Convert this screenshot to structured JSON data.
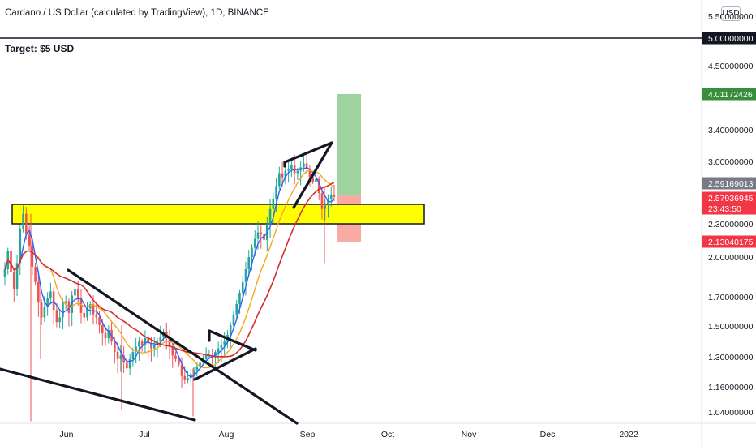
{
  "header": {
    "title": "Cardano / US Dollar (calculated by TradingView), 1D, BINANCE",
    "currency_button": "USD",
    "annotation": "Target: $5 USD"
  },
  "colors": {
    "up": "#26a69a",
    "down": "#ef5350",
    "ma_blue": "#2962ff",
    "ma_orange": "#f5a623",
    "ma_red": "#d32f2f",
    "zone": "#ffff00",
    "target_green": "#4caf50",
    "stop_red": "#f44336",
    "badge_dark": "#131722",
    "badge_green": "#388e3c",
    "badge_grey": "#787b86",
    "badge_red": "#f23645"
  },
  "chart_data": {
    "type": "candlestick",
    "title": "Cardano / US Dollar (calculated by TradingView), 1D, BINANCE",
    "x_ticks": [
      "Jun",
      "Jul",
      "Aug",
      "Sep",
      "Oct",
      "Nov",
      "Dec",
      "2022"
    ],
    "y_ticks": [
      "5.50000000",
      "5.00000000",
      "4.50000000",
      "3.40000000",
      "3.00000000",
      "2.30000000",
      "2.00000000",
      "1.70000000",
      "1.50000000",
      "1.30000000",
      "1.16000000",
      "1.04000000"
    ],
    "y_scale": "log",
    "price_badges": [
      {
        "label": "5.00000000",
        "kind": "dark",
        "value": 5.0
      },
      {
        "label": "4.01172426",
        "kind": "green",
        "value": 4.01172426
      },
      {
        "label": "2.59169013",
        "kind": "grey",
        "value": 2.59169013
      },
      {
        "label": "2.57936945",
        "kind": "red",
        "value": 2.57936945,
        "sub": "23:43:50"
      },
      {
        "label": "2.13040175",
        "kind": "red",
        "value": 2.13040175
      }
    ],
    "horizontal_line": 5.0,
    "support_zone": [
      2.34,
      2.55
    ],
    "position": {
      "entry": 2.59169013,
      "target": 4.01172426,
      "stop": 2.13040175
    },
    "closes": [
      1.9,
      2.05,
      1.88,
      1.75,
      1.95,
      2.25,
      2.4,
      2.2,
      2.1,
      1.92,
      1.8,
      1.65,
      1.55,
      1.62,
      1.68,
      1.73,
      1.6,
      1.52,
      1.55,
      1.65,
      1.66,
      1.58,
      1.7,
      1.75,
      1.68,
      1.58,
      1.55,
      1.61,
      1.64,
      1.57,
      1.55,
      1.5,
      1.45,
      1.42,
      1.47,
      1.4,
      1.34,
      1.3,
      1.32,
      1.28,
      1.25,
      1.3,
      1.34,
      1.37,
      1.4,
      1.38,
      1.42,
      1.39,
      1.36,
      1.38,
      1.4,
      1.43,
      1.46,
      1.42,
      1.37,
      1.32,
      1.3,
      1.27,
      1.21,
      1.19,
      1.2,
      1.22,
      1.24,
      1.26,
      1.28,
      1.3,
      1.32,
      1.32,
      1.31,
      1.34,
      1.36,
      1.38,
      1.4,
      1.44,
      1.5,
      1.57,
      1.64,
      1.72,
      1.8,
      1.9,
      2.0,
      2.08,
      2.16,
      2.22,
      2.2,
      2.15,
      2.3,
      2.45,
      2.55,
      2.7,
      2.85,
      2.8,
      2.88,
      2.9,
      2.95,
      2.85,
      2.88,
      2.92,
      2.97,
      2.9,
      2.8,
      2.75,
      2.78,
      2.62,
      2.45,
      2.5,
      2.55,
      2.6,
      2.58
    ]
  }
}
